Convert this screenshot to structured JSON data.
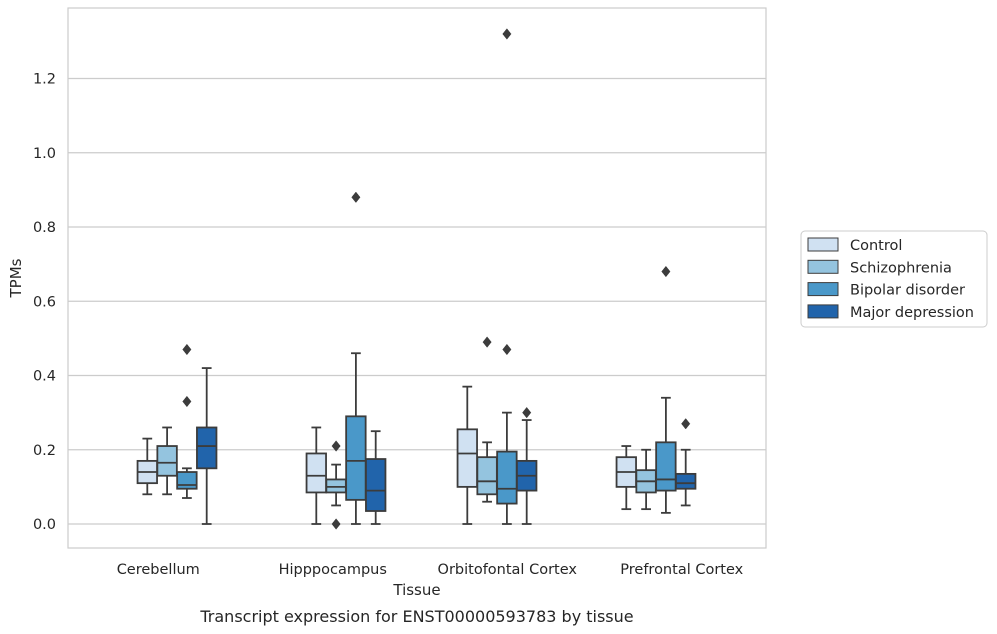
{
  "chart_data": {
    "type": "box",
    "xlabel": "Tissue",
    "ylabel": "TPMs",
    "caption": "Transcript expression for ENST00000593783 by tissue",
    "ylim": [
      -0.065,
      1.38
    ],
    "yticks": [
      0.0,
      0.2,
      0.4,
      0.6,
      0.8,
      1.0,
      1.2
    ],
    "ytick_labels": [
      "0.0",
      "0.2",
      "0.4",
      "0.6",
      "0.8",
      "1.0",
      "1.2"
    ],
    "grid": true,
    "legend_position": "right",
    "categories": [
      "Cerebellum",
      "Hipppocampus",
      "Orbitofontal Cortex",
      "Prefrontal Cortex"
    ],
    "series": [
      {
        "name": "Control",
        "color": "#d0e1f2",
        "boxes": [
          {
            "whislo": 0.08,
            "q1": 0.11,
            "med": 0.14,
            "q3": 0.17,
            "whishi": 0.23,
            "fliers": []
          },
          {
            "whislo": 0.0,
            "q1": 0.085,
            "med": 0.13,
            "q3": 0.19,
            "whishi": 0.26,
            "fliers": []
          },
          {
            "whislo": 0.0,
            "q1": 0.1,
            "med": 0.19,
            "q3": 0.255,
            "whishi": 0.37,
            "fliers": []
          },
          {
            "whislo": 0.04,
            "q1": 0.1,
            "med": 0.14,
            "q3": 0.18,
            "whishi": 0.21,
            "fliers": []
          }
        ]
      },
      {
        "name": "Schizophrenia",
        "color": "#94c4df",
        "boxes": [
          {
            "whislo": 0.08,
            "q1": 0.13,
            "med": 0.165,
            "q3": 0.21,
            "whishi": 0.26,
            "fliers": []
          },
          {
            "whislo": 0.05,
            "q1": 0.085,
            "med": 0.1,
            "q3": 0.12,
            "whishi": 0.16,
            "fliers": [
              0.21,
              0.0
            ]
          },
          {
            "whislo": 0.06,
            "q1": 0.08,
            "med": 0.115,
            "q3": 0.18,
            "whishi": 0.22,
            "fliers": [
              0.49
            ]
          },
          {
            "whislo": 0.04,
            "q1": 0.085,
            "med": 0.115,
            "q3": 0.145,
            "whishi": 0.2,
            "fliers": []
          }
        ]
      },
      {
        "name": "Bipolar disorder",
        "color": "#4a98c9",
        "boxes": [
          {
            "whislo": 0.07,
            "q1": 0.095,
            "med": 0.105,
            "q3": 0.14,
            "whishi": 0.15,
            "fliers": [
              0.47,
              0.33
            ]
          },
          {
            "whislo": 0.0,
            "q1": 0.065,
            "med": 0.17,
            "q3": 0.29,
            "whishi": 0.46,
            "fliers": [
              0.88
            ]
          },
          {
            "whislo": 0.0,
            "q1": 0.055,
            "med": 0.095,
            "q3": 0.195,
            "whishi": 0.3,
            "fliers": [
              0.47,
              1.32
            ]
          },
          {
            "whislo": 0.03,
            "q1": 0.09,
            "med": 0.12,
            "q3": 0.22,
            "whishi": 0.34,
            "fliers": [
              0.68
            ]
          }
        ]
      },
      {
        "name": "Major depression",
        "color": "#2164ab",
        "boxes": [
          {
            "whislo": 0.0,
            "q1": 0.15,
            "med": 0.21,
            "q3": 0.26,
            "whishi": 0.42,
            "fliers": []
          },
          {
            "whislo": 0.0,
            "q1": 0.035,
            "med": 0.09,
            "q3": 0.175,
            "whishi": 0.25,
            "fliers": []
          },
          {
            "whislo": 0.0,
            "q1": 0.09,
            "med": 0.13,
            "q3": 0.17,
            "whishi": 0.28,
            "fliers": [
              0.3
            ]
          },
          {
            "whislo": 0.05,
            "q1": 0.095,
            "med": 0.11,
            "q3": 0.135,
            "whishi": 0.2,
            "fliers": [
              0.27
            ]
          }
        ]
      }
    ]
  }
}
